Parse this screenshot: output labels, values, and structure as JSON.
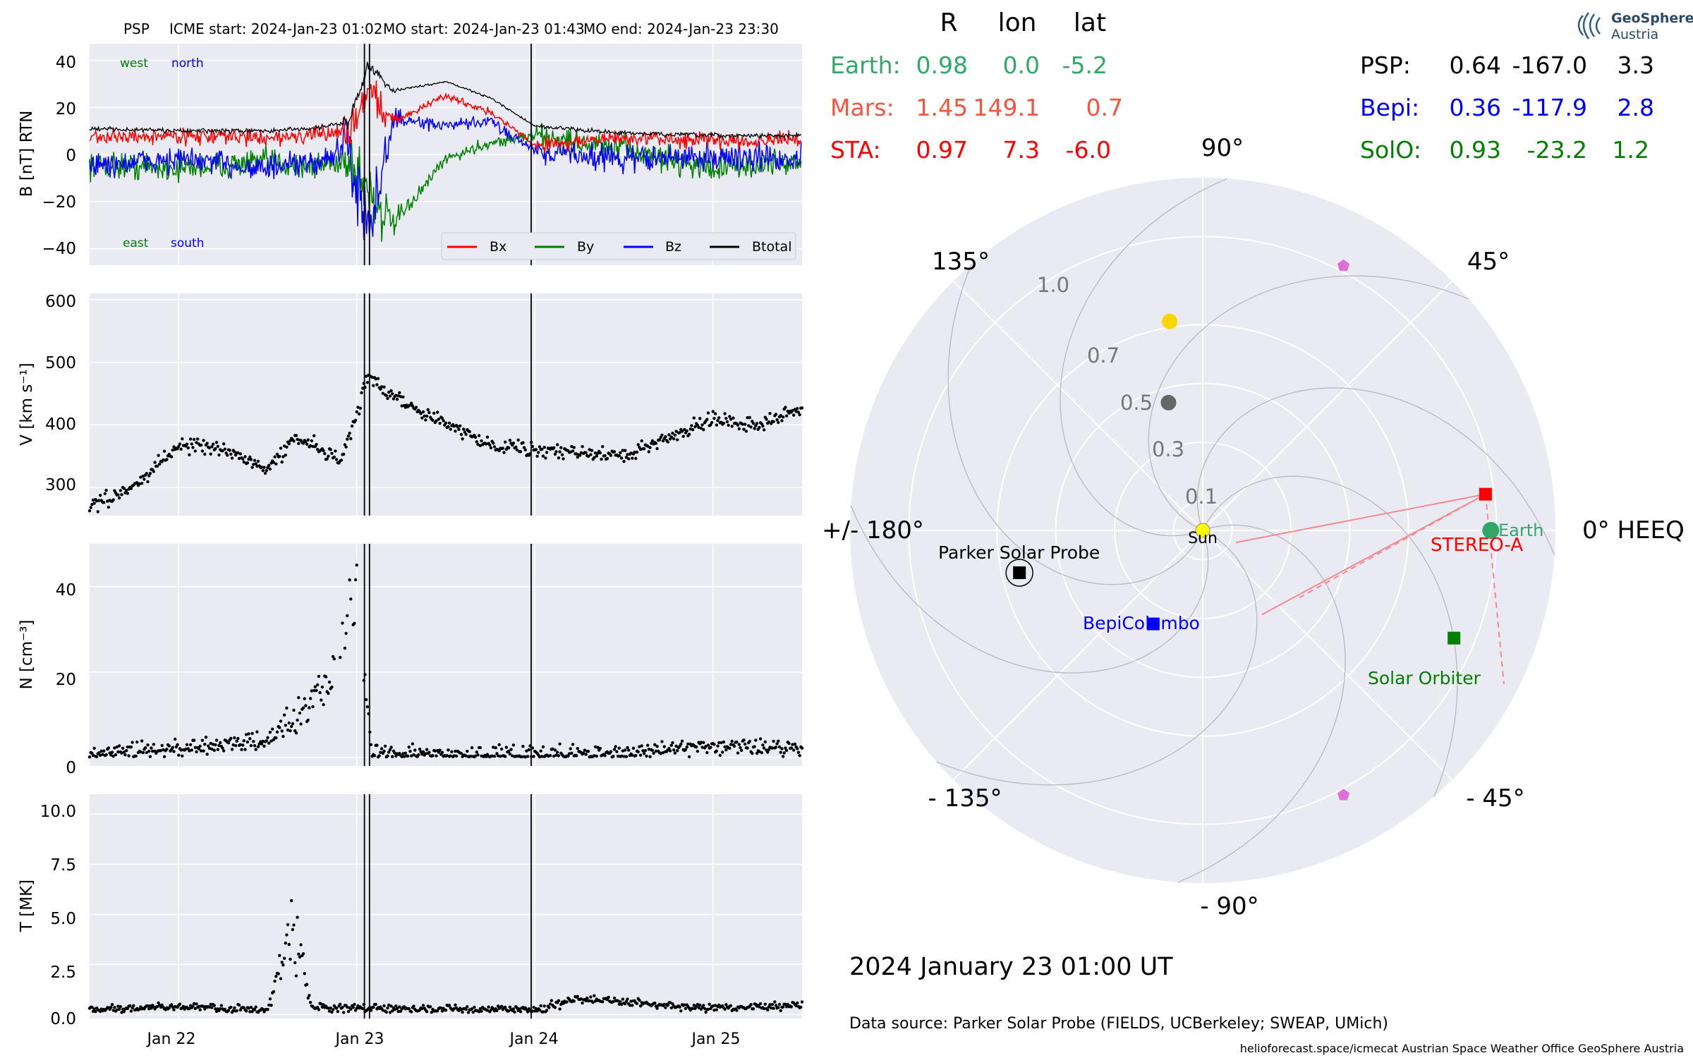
{
  "header": {
    "spacecraft": "PSP",
    "icme_start": "ICME start: 2024-Jan-23 01:02",
    "mo_start": "MO start: 2024-Jan-23 01:43",
    "mo_end": "MO end: 2024-Jan-23 23:30"
  },
  "colors": {
    "earth": "#2fa868",
    "mars": "#f4553f",
    "sta": "#ff0000",
    "psp": "#000000",
    "bepi": "#0000ff",
    "solo": "#008000",
    "bx": "#ff0000",
    "by": "#008000",
    "bz": "#0000ff",
    "btotal": "#000000",
    "panel_bg": "#eaeaf2",
    "grid": "#ffffff",
    "psp_neighbor": "#da70d6",
    "mercury": "#666666",
    "venus": "#ffd400"
  },
  "chart_data": [
    {
      "type": "line",
      "ylabel": "B [nT] RTN",
      "ylim": [
        -47,
        47
      ],
      "yticks": [
        "40",
        "20",
        "0",
        "−20",
        "−40"
      ],
      "annotations": {
        "west": "west",
        "north": "north",
        "east": "east",
        "south": "south"
      },
      "legend": [
        "Bx",
        "By",
        "Bz",
        "Btotal"
      ],
      "legend_position": "lower-right",
      "x_start": "2024-01-21 12:00",
      "x_end": "2024-01-25 12:00",
      "series": [
        {
          "name": "Btotal",
          "x": [
            "01-21 12:00",
            "01-22 00:00",
            "01-22 12:00",
            "01-22 18:00",
            "01-22 23:00",
            "01-23 01:30",
            "01-23 05:00",
            "01-23 12:00",
            "01-23 18:00",
            "01-24 00:00",
            "01-24 12:00",
            "01-25 00:00",
            "01-25 12:00"
          ],
          "values": [
            11,
            10,
            10,
            11,
            14,
            38,
            27,
            31,
            24,
            12,
            9,
            8,
            8
          ]
        },
        {
          "name": "Bx",
          "x": [
            "01-21 12:00",
            "01-22 00:00",
            "01-22 12:00",
            "01-22 18:00",
            "01-22 23:00",
            "01-23 01:30",
            "01-23 05:00",
            "01-23 12:00",
            "01-23 18:00",
            "01-24 00:00",
            "01-24 12:00",
            "01-25 00:00",
            "01-25 12:00"
          ],
          "values": [
            7,
            8,
            7,
            8,
            10,
            28,
            14,
            25,
            18,
            4,
            7,
            6,
            6
          ]
        },
        {
          "name": "By",
          "x": [
            "01-21 12:00",
            "01-22 00:00",
            "01-22 12:00",
            "01-22 18:00",
            "01-22 23:00",
            "01-23 01:30",
            "01-23 05:00",
            "01-23 12:00",
            "01-23 18:00",
            "01-24 00:00",
            "01-24 12:00",
            "01-25 00:00",
            "01-25 12:00"
          ],
          "values": [
            -4,
            -6,
            -3,
            -5,
            -2,
            -15,
            -30,
            -2,
            5,
            8,
            2,
            -6,
            -3
          ]
        },
        {
          "name": "Bz",
          "x": [
            "01-21 12:00",
            "01-22 00:00",
            "01-22 12:00",
            "01-22 18:00",
            "01-22 23:00",
            "01-23 01:30",
            "01-23 05:00",
            "01-23 12:00",
            "01-23 18:00",
            "01-24 00:00",
            "01-24 12:00",
            "01-25 00:00",
            "01-25 12:00"
          ],
          "values": [
            -5,
            -2,
            -6,
            -4,
            3,
            -36,
            15,
            12,
            14,
            2,
            -2,
            -1,
            -2
          ]
        }
      ],
      "event_lines": [
        "2024-01-23 01:02",
        "2024-01-23 01:43",
        "2024-01-23 23:30"
      ]
    },
    {
      "type": "scatter",
      "ylabel": "V [km s⁻¹]",
      "ylim": [
        255,
        610
      ],
      "yticks": [
        "600",
        "500",
        "400",
        "300"
      ],
      "x_start": "2024-01-21 12:00",
      "x_end": "2024-01-25 12:00",
      "trend_x": [
        "01-21 12:00",
        "01-21 18:00",
        "01-22 00:00",
        "01-22 06:00",
        "01-22 12:00",
        "01-22 16:00",
        "01-22 22:00",
        "01-23 01:30",
        "01-23 06:00",
        "01-23 12:00",
        "01-23 18:00",
        "01-24 00:00",
        "01-24 12:00",
        "01-25 00:00",
        "01-25 06:00",
        "01-25 12:00"
      ],
      "trend_y": [
        270,
        300,
        370,
        360,
        330,
        380,
        345,
        475,
        440,
        400,
        370,
        360,
        350,
        410,
        400,
        425
      ]
    },
    {
      "type": "scatter",
      "ylabel": "N [cm⁻³]",
      "ylim": [
        -2,
        50
      ],
      "yticks": [
        "40",
        "20",
        "0"
      ],
      "x_start": "2024-01-21 12:00",
      "x_end": "2024-01-25 12:00",
      "trend_x": [
        "01-21 12:00",
        "01-22 00:00",
        "01-22 12:00",
        "01-22 16:00",
        "01-22 20:00",
        "01-23 00:00",
        "01-23 02:00",
        "01-23 12:00",
        "01-24 12:00",
        "01-25 00:00",
        "01-25 12:00"
      ],
      "trend_y": [
        0.5,
        2,
        4,
        10,
        18,
        35,
        1,
        0.5,
        1,
        3,
        2
      ]
    },
    {
      "type": "scatter",
      "ylabel": "T [MK]",
      "ylim": [
        -0.2,
        11
      ],
      "yticks": [
        "10.0",
        "7.5",
        "5.0",
        "2.5",
        "0.0"
      ],
      "x_start": "2024-01-21 12:00",
      "x_end": "2024-01-25 12:00",
      "trend_x": [
        "01-21 12:00",
        "01-22 00:00",
        "01-22 12:00",
        "01-22 15:00",
        "01-22 18:00",
        "01-23 00:00",
        "01-24 00:00",
        "01-24 06:00",
        "01-25 00:00",
        "01-25 12:00"
      ],
      "trend_y": [
        0.2,
        0.4,
        0.2,
        4.5,
        0.3,
        0.3,
        0.2,
        0.8,
        0.3,
        0.5
      ],
      "xticks": [
        "Jan 22",
        "Jan 23",
        "Jan 24",
        "Jan 25"
      ]
    },
    {
      "type": "polar",
      "angle_labels": {
        "deg90": "90°",
        "deg45": "45°",
        "deg0": "0° HEEQ",
        "deg135": "135°",
        "deg180": "+/- 180°",
        "degm135": "- 135°",
        "degm90": "- 90°",
        "degm45": "- 45°"
      },
      "radius_labels": [
        "1.0",
        "0.7",
        "0.5",
        "0.3",
        "0.1"
      ],
      "rmax": 1.2,
      "bodies": [
        {
          "name": "Sun",
          "r": 0.0,
          "lon": 0.0
        },
        {
          "name": "Earth",
          "r": 0.98,
          "lon": 0.0
        },
        {
          "name": "STEREO-A",
          "r": 0.97,
          "lon": 7.3
        },
        {
          "name": "Solar Orbiter",
          "r": 0.93,
          "lon": -23.2
        },
        {
          "name": "BepiColombo",
          "r": 0.36,
          "lon": -117.9
        },
        {
          "name": "Parker Solar Probe",
          "r": 0.64,
          "lon": -167.0
        }
      ]
    }
  ],
  "positions_table": {
    "headers": {
      "r": "R",
      "lon": "lon",
      "lat": "lat"
    },
    "left_rows": [
      {
        "label": "Earth:",
        "r": "0.98",
        "lon": "0.0",
        "lat": "-5.2"
      },
      {
        "label": "Mars:",
        "r": "1.45",
        "lon": "149.1",
        "lat": "0.7"
      },
      {
        "label": "STA:",
        "r": "0.97",
        "lon": "7.3",
        "lat": "-6.0"
      }
    ],
    "right_rows": [
      {
        "label": "PSP:",
        "r": "0.64",
        "lon": "-167.0",
        "lat": "3.3"
      },
      {
        "label": "Bepi:",
        "r": "0.36",
        "lon": "-117.9",
        "lat": "2.8"
      },
      {
        "label": "SolO:",
        "r": "0.93",
        "lon": "-23.2",
        "lat": "1.2"
      }
    ]
  },
  "logo": {
    "line1": "GeoSphere",
    "line2": "Austria"
  },
  "footer": {
    "timestamp": "2024 January 23  01:00 UT",
    "data_source": "Data source: Parker Solar Probe (FIELDS, UCBerkeley; SWEAP, UMich)",
    "credits": "helioforecast.space/icmecat   Austrian Space Weather Office   GeoSphere Austria"
  }
}
